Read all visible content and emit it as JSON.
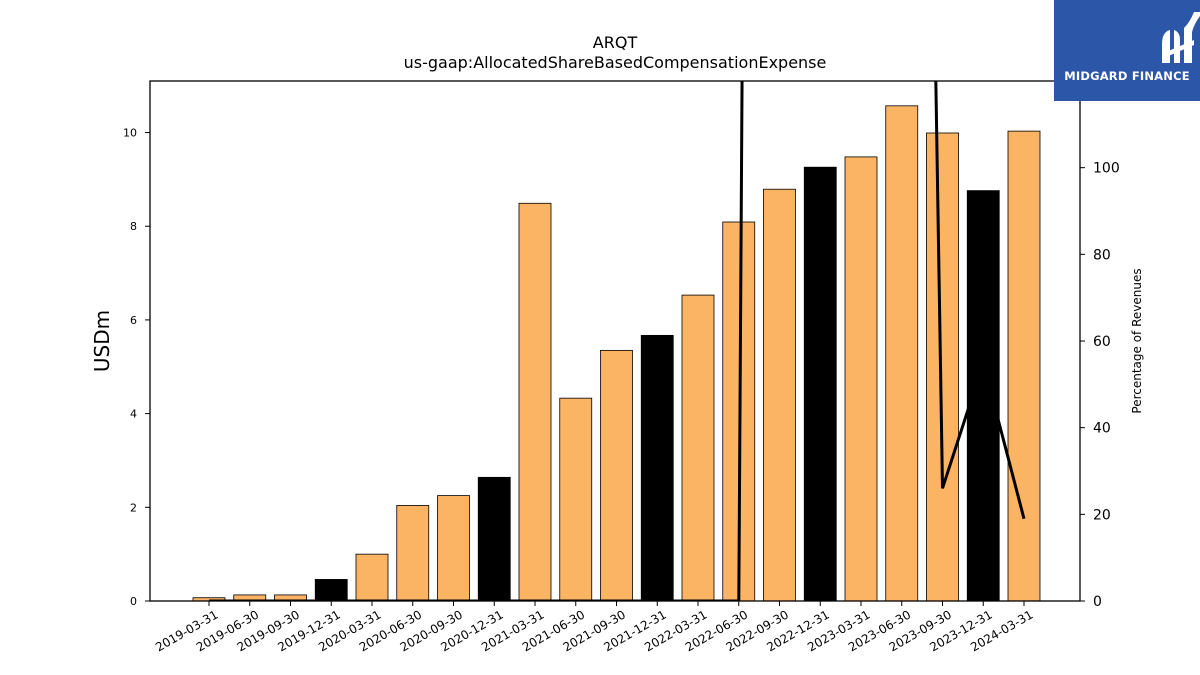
{
  "chart_data": {
    "type": "bar",
    "title": "ARQT",
    "subtitle": "us-gaap:AllocatedShareBasedCompensationExpense",
    "ylabel": "USDm",
    "y2label": "Percentage of Revenues",
    "ylim": [
      0,
      11.1
    ],
    "y2lim": [
      0,
      120
    ],
    "yticks": [
      0,
      2,
      4,
      6,
      8,
      10
    ],
    "y2ticks": [
      0,
      20,
      40,
      60,
      80,
      100
    ],
    "categories": [
      "2019-03-31",
      "2019-06-30",
      "2019-09-30",
      "2019-12-31",
      "2020-03-31",
      "2020-06-30",
      "2020-09-30",
      "2020-12-31",
      "2021-03-31",
      "2021-06-30",
      "2021-09-30",
      "2021-12-31",
      "2022-03-31",
      "2022-06-30",
      "2022-09-30",
      "2022-12-31",
      "2023-03-31",
      "2023-06-30",
      "2023-09-30",
      "2023-12-31",
      "2024-03-31"
    ],
    "values": [
      0.07,
      0.13,
      0.13,
      0.46,
      1.0,
      2.04,
      2.25,
      2.64,
      8.49,
      4.33,
      5.35,
      5.67,
      6.53,
      8.09,
      8.79,
      9.26,
      9.48,
      10.57,
      9.99,
      8.76,
      10.03
    ],
    "bar_colors": [
      "#fbb463",
      "#fbb463",
      "#fbb463",
      "#000000",
      "#fbb463",
      "#fbb463",
      "#fbb463",
      "#000000",
      "#fbb463",
      "#fbb463",
      "#fbb463",
      "#000000",
      "#fbb463",
      "#fbb463",
      "#fbb463",
      "#000000",
      "#fbb463",
      "#fbb463",
      "#fbb463",
      "#000000",
      "#fbb463"
    ],
    "line_series": {
      "name": "Percentage of Revenues",
      "values": [
        0,
        0,
        0,
        0,
        0,
        0,
        0,
        0,
        0,
        0,
        0,
        0,
        0,
        0,
        1500,
        1300,
        900,
        600,
        26,
        55,
        19
      ]
    },
    "grid": false,
    "legend": "none"
  },
  "logo": {
    "name": "MIDGARD FINANCE",
    "color": "#2c56a8"
  }
}
